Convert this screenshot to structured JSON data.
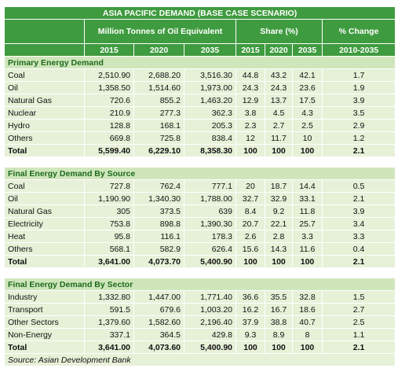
{
  "header": {
    "title": "ASIA PACIFIC DEMAND (BASE CASE SCENARIO)",
    "volume_label": "Million Tonnes of Oil Equivalent",
    "share_label": "Share (%)",
    "change_label": "% Change",
    "years": [
      "2015",
      "2020",
      "2035",
      "2015",
      "2020",
      "2035"
    ],
    "change_period": "2010-2035"
  },
  "sections": [
    {
      "title": "Primary Energy Demand",
      "rows": [
        [
          "Coal",
          "2,510.90",
          "2,688.20",
          "3,516.30",
          "44.8",
          "43.2",
          "42.1",
          "1.7"
        ],
        [
          "Oil",
          "1,358.50",
          "1,514.60",
          "1,973.00",
          "24.3",
          "24.3",
          "23.6",
          "1.9"
        ],
        [
          "Natural Gas",
          "720.6",
          "855.2",
          "1,463.20",
          "12.9",
          "13.7",
          "17.5",
          "3.9"
        ],
        [
          "Nuclear",
          "210.9",
          "277.3",
          "362.3",
          "3.8",
          "4.5",
          "4.3",
          "3.5"
        ],
        [
          "Hydro",
          "128.8",
          "168.1",
          "205.3",
          "2.3",
          "2.7",
          "2.5",
          "2.9"
        ],
        [
          "Others",
          "669.8",
          "725.8",
          "838.4",
          "12",
          "11.7",
          "10",
          "1.2"
        ],
        [
          "Total",
          "5,599.40",
          "6,229.10",
          "8,358.30",
          "100",
          "100",
          "100",
          "2.1"
        ]
      ]
    },
    {
      "title": "Final Energy Demand By Source",
      "rows": [
        [
          "Coal",
          "727.8",
          "762.4",
          "777.1",
          "20",
          "18.7",
          "14.4",
          "0.5"
        ],
        [
          "Oil",
          "1,190.90",
          "1,340.30",
          "1,788.00",
          "32.7",
          "32.9",
          "33.1",
          "2.1"
        ],
        [
          "Natural Gas",
          "305",
          "373.5",
          "639",
          "8.4",
          "9.2",
          "11.8",
          "3.9"
        ],
        [
          "Electricity",
          "753.8",
          "898.8",
          "1,390.30",
          "20.7",
          "22.1",
          "25.7",
          "3.4"
        ],
        [
          "Heat",
          "95.8",
          "116.1",
          "178.3",
          "2.6",
          "2.8",
          "3.3",
          "3.3"
        ],
        [
          "Others",
          "568.1",
          "582.9",
          "626.4",
          "15.6",
          "14.3",
          "11.6",
          "0.4"
        ],
        [
          "Total",
          "3,641.00",
          "4,073.70",
          "5,400.90",
          "100",
          "100",
          "100",
          "2.1"
        ]
      ]
    },
    {
      "title": "Final Energy Demand By Sector",
      "rows": [
        [
          "Industry",
          "1,332.80",
          "1,447.00",
          "1,771.40",
          "36.6",
          "35.5",
          "32.8",
          "1.5"
        ],
        [
          "Transport",
          "591.5",
          "679.6",
          "1,003.20",
          "16.2",
          "16.7",
          "18.6",
          "2.7"
        ],
        [
          "Other Sectors",
          "1,379.60",
          "1,582.60",
          "2,196.40",
          "37.9",
          "38.8",
          "40.7",
          "2.5"
        ],
        [
          "Non-Energy",
          "337.1",
          "364.5",
          "429.8",
          "9.3",
          "8.9",
          "8",
          "1.1"
        ],
        [
          "Total",
          "3,641.00",
          "4,073.60",
          "5,400.90",
          "100",
          "100",
          "100",
          "2.1"
        ]
      ]
    }
  ],
  "source": "Source: Asian Development Bank"
}
